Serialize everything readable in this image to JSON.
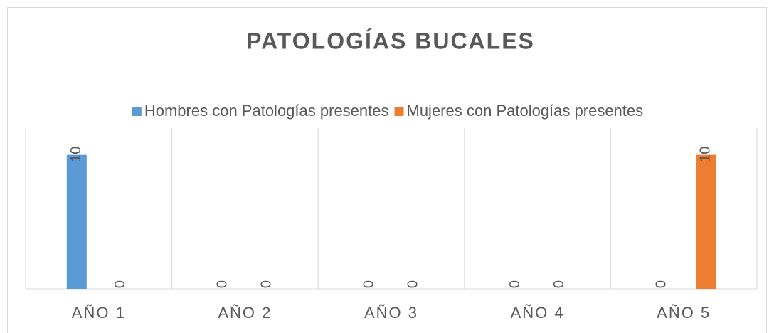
{
  "chart_data": {
    "type": "bar",
    "title": "PATOLOGÍAS BUCALES",
    "categories": [
      "AÑO 1",
      "AÑO 2",
      "AÑO 3",
      "AÑO 4",
      "AÑO 5"
    ],
    "series": [
      {
        "name": "Hombres con Patologías presentes",
        "color": "#5b9bd5",
        "values": [
          10,
          0,
          0,
          0,
          0
        ]
      },
      {
        "name": "Mujeres con Patologías presentes",
        "color": "#ed7d31",
        "values": [
          0,
          0,
          0,
          0,
          10
        ]
      }
    ],
    "ylim": [
      0,
      12
    ],
    "legend": "top"
  }
}
